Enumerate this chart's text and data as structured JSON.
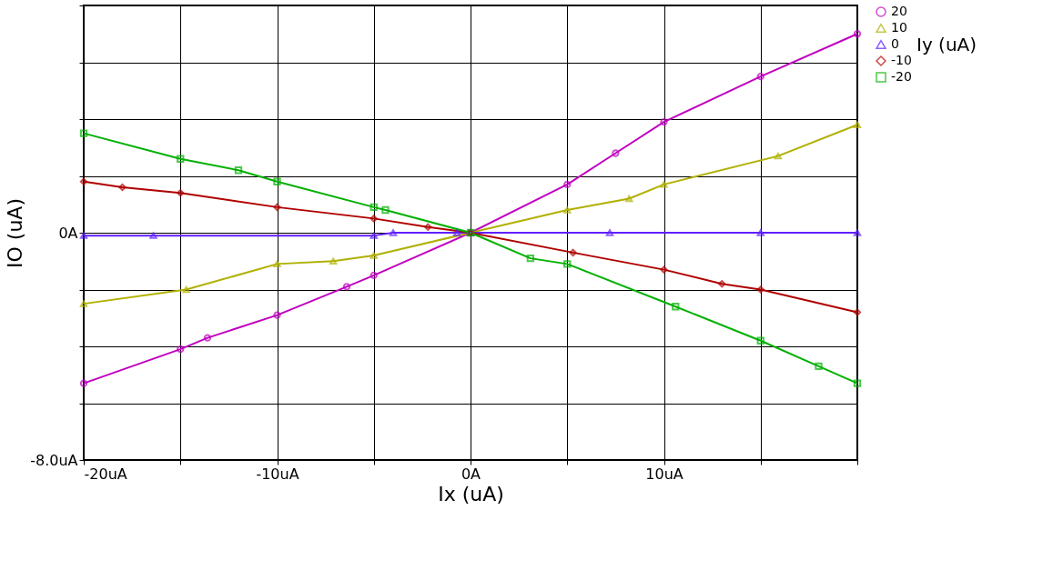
{
  "chart_data": {
    "type": "line",
    "xlabel": "Ix (uA)",
    "ylabel": "IO (uA)",
    "legend_title": "Iy (uA)",
    "legend": "right",
    "grid": true,
    "line_style": "solid",
    "xlim": [
      -20,
      20
    ],
    "ylim": [
      -8,
      8
    ],
    "xticks": [
      {
        "value": -20,
        "label": "-20uA"
      },
      {
        "value": -15,
        "label": null
      },
      {
        "value": -10,
        "label": "-10uA"
      },
      {
        "value": -5,
        "label": null
      },
      {
        "value": 0,
        "label": "0A"
      },
      {
        "value": 5,
        "label": null
      },
      {
        "value": 10,
        "label": "10uA"
      },
      {
        "value": 15,
        "label": null
      },
      {
        "value": 20,
        "label": null
      }
    ],
    "yticks": [
      {
        "value": -8,
        "label": "-8.0uA"
      },
      {
        "value": -6,
        "label": null
      },
      {
        "value": -4,
        "label": null
      },
      {
        "value": -2,
        "label": null
      },
      {
        "value": 0,
        "label": "0A"
      },
      {
        "value": 2,
        "label": null
      },
      {
        "value": 4,
        "label": null
      },
      {
        "value": 6,
        "label": null
      },
      {
        "value": 8,
        "label": null
      }
    ],
    "series": [
      {
        "name": "20",
        "color": "#c000c0",
        "marker": "circle",
        "x": [
          -20,
          -15,
          -13.6,
          -10,
          -6.4,
          -5,
          0,
          5,
          7.5,
          10,
          15,
          20
        ],
        "values": [
          -5.3,
          -4.1,
          -3.7,
          -2.9,
          -1.9,
          -1.5,
          0,
          1.7,
          2.8,
          3.9,
          5.5,
          7.0
        ]
      },
      {
        "name": "10",
        "color": "#b0b000",
        "marker": "triangle",
        "x": [
          -20,
          -14.7,
          -10,
          -7.1,
          -5,
          0,
          5,
          8.2,
          10,
          15.9,
          20
        ],
        "values": [
          -2.5,
          -2.0,
          -1.1,
          -1.0,
          -0.8,
          0,
          0.8,
          1.2,
          1.7,
          2.7,
          3.8
        ]
      },
      {
        "name": "0",
        "color": "#6020ff",
        "marker": "triangle",
        "x": [
          -20,
          -16.4,
          -5,
          -4,
          -0.7,
          0,
          7.2,
          15,
          20
        ],
        "values": [
          -0.1,
          -0.1,
          -0.1,
          0,
          0,
          0,
          0,
          0,
          0
        ]
      },
      {
        "name": "-10",
        "color": "#b00000",
        "marker": "diamond",
        "x": [
          -20,
          -18,
          -15,
          -10,
          -5,
          -2.2,
          0,
          5.3,
          10,
          13,
          15,
          20
        ],
        "values": [
          1.8,
          1.6,
          1.4,
          0.9,
          0.5,
          0.2,
          0,
          -0.7,
          -1.3,
          -1.8,
          -2.0,
          -2.8
        ]
      },
      {
        "name": "-20",
        "color": "#00b000",
        "marker": "square",
        "x": [
          -20,
          -15,
          -12,
          -10,
          -5,
          -4.4,
          0,
          3.1,
          5,
          10.6,
          15,
          18,
          20
        ],
        "values": [
          3.5,
          2.6,
          2.2,
          1.8,
          0.9,
          0.8,
          0,
          -0.9,
          -1.1,
          -2.6,
          -3.8,
          -4.7,
          -5.3
        ]
      }
    ]
  }
}
